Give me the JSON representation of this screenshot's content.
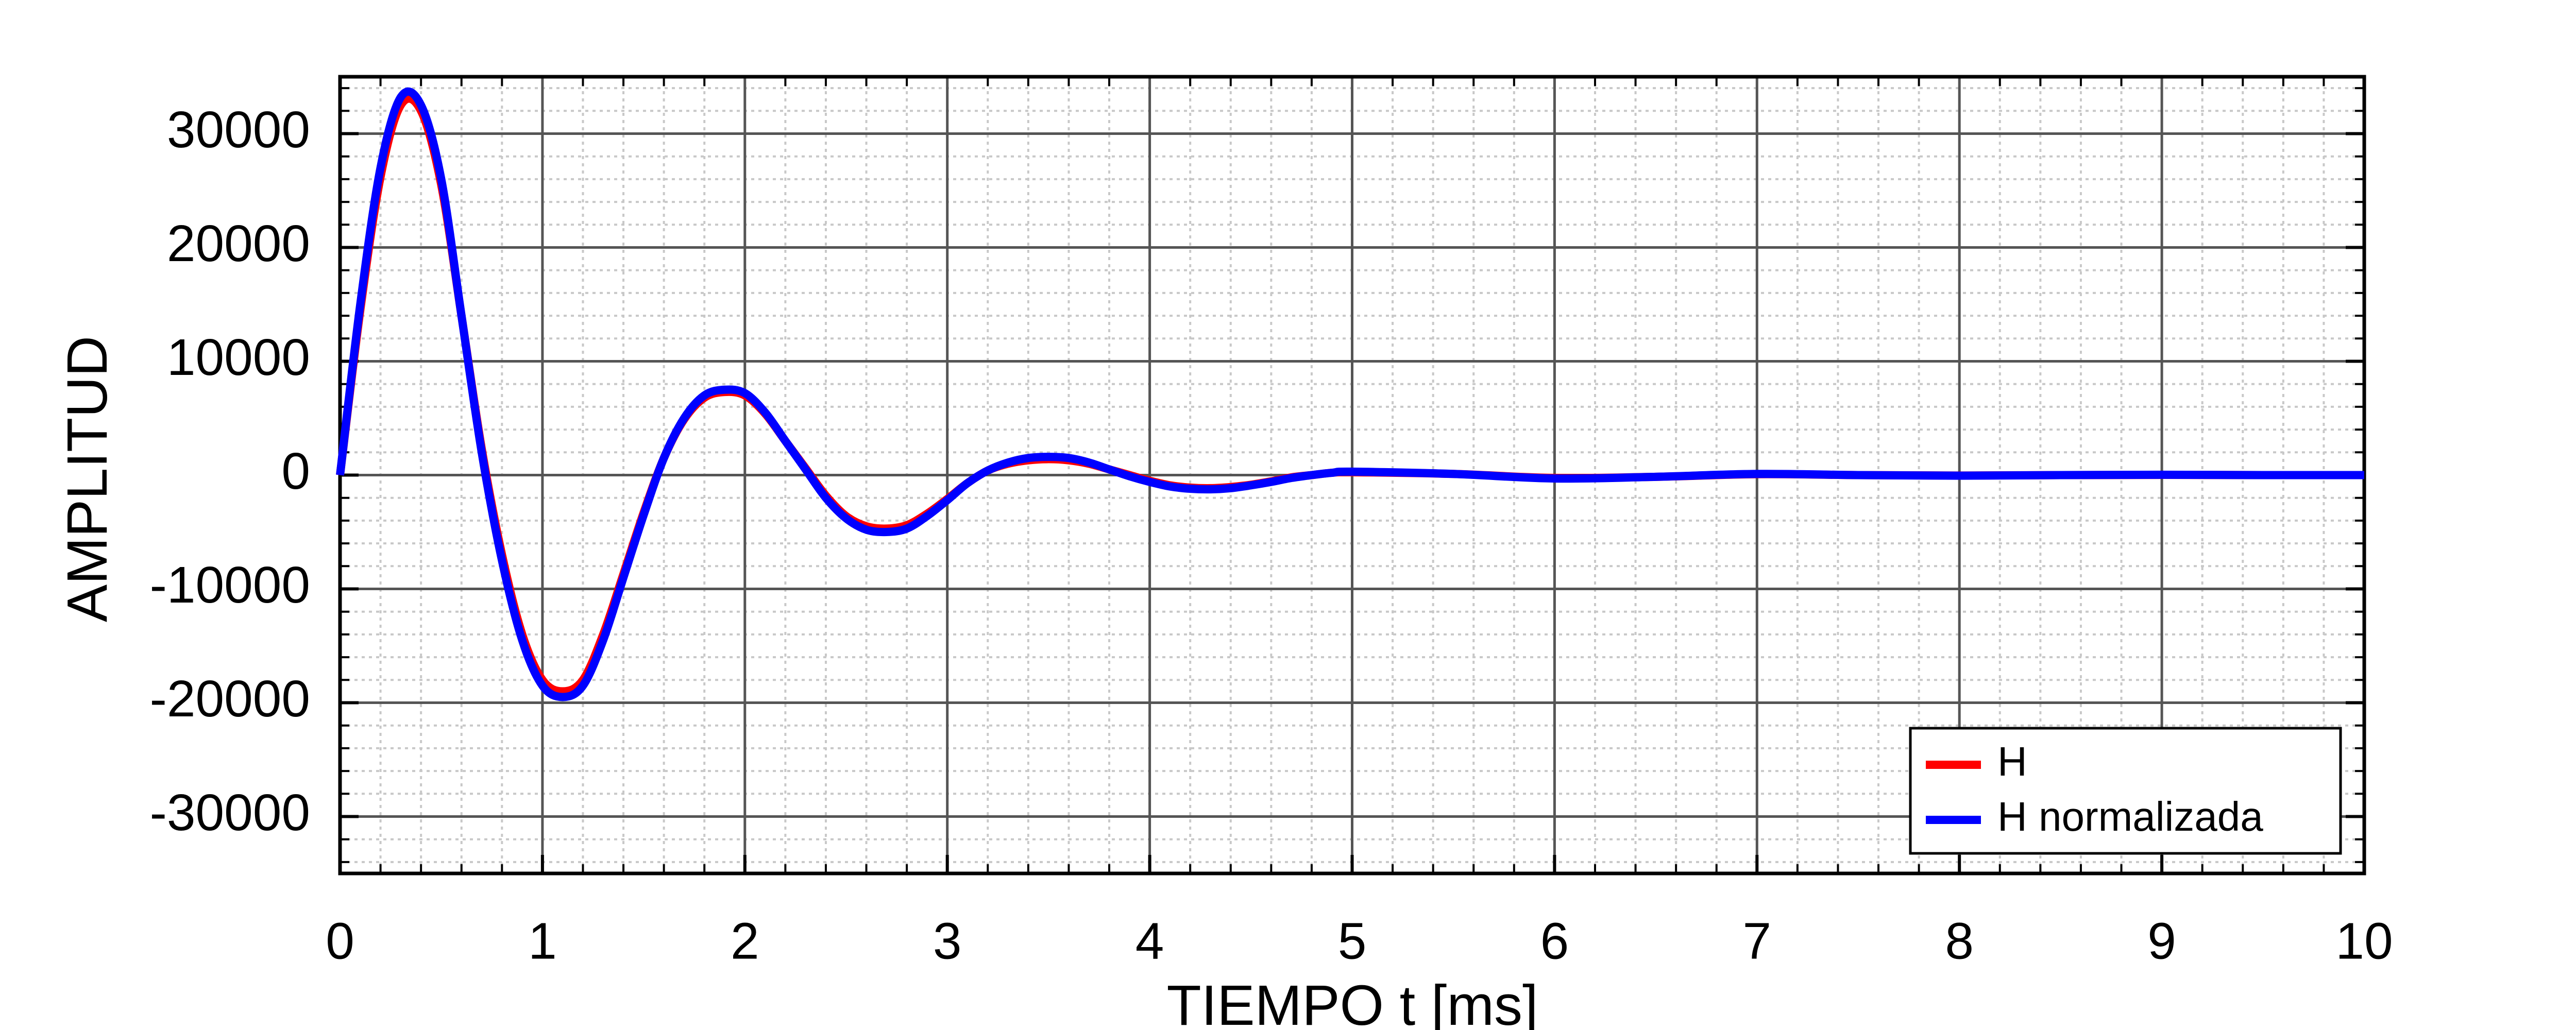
{
  "chart_data": {
    "type": "line",
    "x_label": "TIEMPO  t  [ms]",
    "y_label": "AMPLITUD",
    "x": [
      0,
      0.1,
      0.2,
      0.3,
      0.4,
      0.5,
      0.6,
      0.7,
      0.8,
      0.9,
      1.0,
      1.1,
      1.2,
      1.3,
      1.4,
      1.5,
      1.6,
      1.7,
      1.8,
      1.9,
      2.0,
      2.1,
      2.2,
      2.3,
      2.4,
      2.5,
      2.6,
      2.7,
      2.8,
      2.9,
      3.0,
      3.1,
      3.2,
      3.3,
      3.4,
      3.5,
      3.6,
      3.7,
      3.8,
      3.9,
      4.0,
      4.1,
      4.2,
      4.3,
      4.4,
      4.5,
      4.6,
      4.7,
      4.8,
      4.9,
      5.0,
      5.5,
      6.0,
      6.5,
      7.0,
      7.5,
      8.0,
      8.5,
      9.0,
      9.5,
      10.0
    ],
    "series": [
      {
        "name": "H",
        "color": "#ff0000",
        "values": [
          0,
          14500,
          26200,
          32500,
          32000,
          25500,
          14000,
          2300,
          -7000,
          -14000,
          -18000,
          -19000,
          -18000,
          -14000,
          -8700,
          -3300,
          1500,
          4900,
          6800,
          7300,
          7000,
          5400,
          3000,
          600,
          -1800,
          -3600,
          -4500,
          -4700,
          -4400,
          -3400,
          -2100,
          -700,
          400,
          1000,
          1300,
          1400,
          1300,
          1000,
          500,
          0,
          -500,
          -900,
          -1100,
          -1150,
          -1050,
          -850,
          -550,
          -200,
          0,
          200,
          250,
          100,
          -250,
          -150,
          80,
          0,
          -40,
          0,
          20,
          0,
          0
        ]
      },
      {
        "name": "H normalizada",
        "color": "#0000ff",
        "values": [
          0,
          15000,
          27000,
          33200,
          32500,
          26000,
          14000,
          2000,
          -7500,
          -14500,
          -18500,
          -19500,
          -18500,
          -14500,
          -9000,
          -3500,
          1500,
          5000,
          7000,
          7500,
          7200,
          5500,
          3000,
          500,
          -2000,
          -3800,
          -4800,
          -5000,
          -4700,
          -3600,
          -2200,
          -700,
          400,
          1100,
          1500,
          1600,
          1500,
          1100,
          500,
          -100,
          -600,
          -1000,
          -1200,
          -1250,
          -1150,
          -900,
          -600,
          -250,
          0,
          200,
          300,
          100,
          -300,
          -150,
          100,
          0,
          -50,
          0,
          30,
          0,
          0
        ]
      }
    ],
    "xlim": [
      0,
      10
    ],
    "ylim": [
      -35000,
      35000
    ],
    "xticks": [
      0,
      1,
      2,
      3,
      4,
      5,
      6,
      7,
      8,
      9,
      10
    ],
    "yticks": [
      -30000,
      -20000,
      -10000,
      0,
      10000,
      20000,
      30000
    ],
    "grid": true,
    "minor_grid": true,
    "legend": "lower right"
  }
}
